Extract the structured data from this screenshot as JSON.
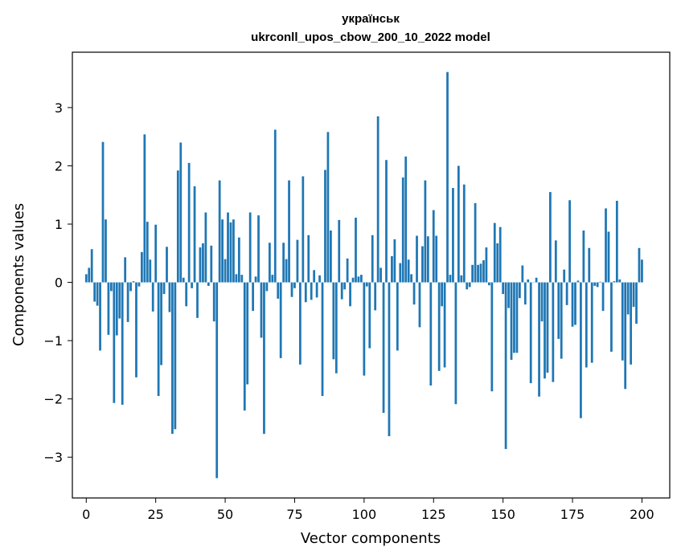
{
  "chart_data": {
    "type": "bar",
    "title_line1": "українськ",
    "title_line2": "ukrconll_upos_cbow_200_10_2022 model",
    "xlabel": "Vector components",
    "ylabel": "Components values",
    "xlim": [
      -5,
      210
    ],
    "ylim": [
      -3.7,
      3.95
    ],
    "xticks": [
      0,
      25,
      50,
      75,
      100,
      125,
      150,
      175,
      200
    ],
    "yticks": [
      -3,
      -2,
      -1,
      0,
      1,
      2,
      3
    ],
    "ytick_labels": [
      "−3",
      "−2",
      "−1",
      "0",
      "1",
      "2",
      "3"
    ],
    "color": "#1f77b4",
    "values": [
      0.14,
      0.25,
      0.57,
      -0.33,
      -0.4,
      -1.17,
      2.41,
      1.08,
      -0.9,
      -0.15,
      -2.07,
      -0.91,
      -0.62,
      -2.1,
      0.43,
      -0.68,
      -0.15,
      0.02,
      -1.63,
      -0.07,
      0.52,
      2.54,
      1.04,
      0.39,
      -0.5,
      0.99,
      -1.95,
      -1.42,
      -0.2,
      0.61,
      -0.51,
      -2.6,
      -2.52,
      1.92,
      2.4,
      0.08,
      -0.41,
      2.05,
      -0.1,
      1.65,
      -0.61,
      0.6,
      0.67,
      1.2,
      -0.06,
      0.63,
      -0.67,
      -3.36,
      1.75,
      1.08,
      0.4,
      1.2,
      1.03,
      1.08,
      0.14,
      0.77,
      0.13,
      -2.2,
      -1.75,
      1.2,
      -0.49,
      0.1,
      1.15,
      -0.95,
      -2.6,
      -0.15,
      0.68,
      0.13,
      2.62,
      -0.28,
      -1.3,
      0.68,
      0.4,
      1.75,
      -0.25,
      -0.1,
      0.73,
      -1.41,
      1.82,
      -0.34,
      0.81,
      -0.3,
      0.21,
      -0.26,
      0.12,
      -1.95,
      1.93,
      2.58,
      0.89,
      -1.32,
      -1.56,
      1.07,
      -0.29,
      -0.12,
      0.41,
      -0.41,
      0.08,
      1.11,
      0.1,
      0.13,
      -1.6,
      -0.07,
      -1.13,
      0.81,
      -0.48,
      2.85,
      0.25,
      -2.24,
      2.1,
      -2.64,
      0.45,
      0.74,
      -1.17,
      0.33,
      1.8,
      2.16,
      0.39,
      0.14,
      -0.38,
      0.8,
      -0.77,
      0.62,
      1.75,
      0.79,
      -1.77,
      1.24,
      0.8,
      -1.52,
      -0.41,
      -1.46,
      3.61,
      0.13,
      1.62,
      -2.09,
      2.0,
      0.12,
      1.68,
      -0.12,
      -0.08,
      0.3,
      1.36,
      0.3,
      0.32,
      0.38,
      0.6,
      -0.05,
      -1.87,
      1.02,
      0.67,
      0.95,
      -0.2,
      -2.86,
      -0.44,
      -1.33,
      -1.21,
      -1.21,
      -0.27,
      0.29,
      -0.38,
      0.05,
      -1.73,
      0.0,
      0.08,
      -1.96,
      -0.67,
      -1.65,
      -1.55,
      1.55,
      -1.71,
      0.72,
      -0.97,
      -1.31,
      0.22,
      -0.39,
      1.41,
      -0.76,
      -0.73,
      0.03,
      -2.33,
      0.89,
      -1.46,
      0.59,
      -1.38,
      -0.06,
      -0.08,
      0.01,
      -0.49,
      1.27,
      0.87,
      -1.19,
      0.02,
      1.4,
      0.05,
      -1.34,
      -1.83,
      -0.55,
      -1.41,
      -0.42,
      -0.71,
      0.59,
      0.39
    ]
  }
}
